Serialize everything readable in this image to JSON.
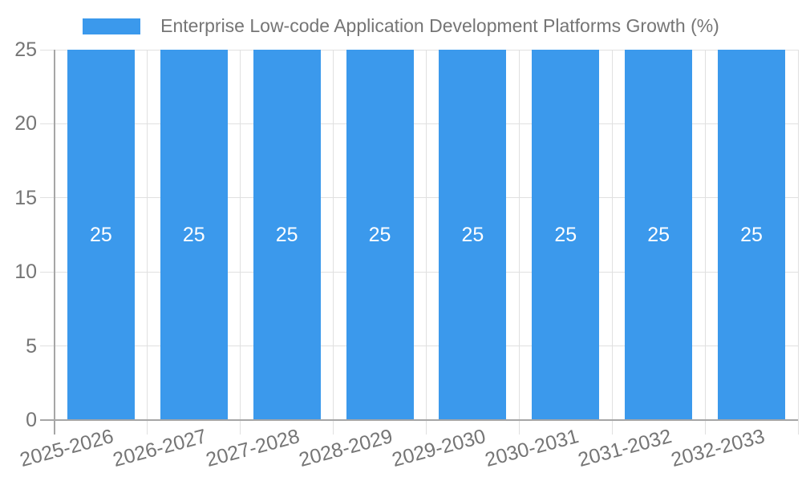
{
  "chart_data": {
    "type": "bar",
    "title": "Enterprise Low-code Application Development Platforms Growth (%)",
    "categories": [
      "2025-2026",
      "2026-2027",
      "2027-2028",
      "2028-2029",
      "2029-2030",
      "2030-2031",
      "2031-2032",
      "2032-2033"
    ],
    "values": [
      25,
      25,
      25,
      25,
      25,
      25,
      25,
      25
    ],
    "value_labels": [
      "25",
      "25",
      "25",
      "25",
      "25",
      "25",
      "25",
      "25"
    ],
    "xlabel": "",
    "ylabel": "",
    "ylim": [
      0,
      25
    ],
    "yticks": [
      0,
      5,
      10,
      15,
      20,
      25
    ],
    "grid": true,
    "legend_position": "top-center",
    "colors": {
      "bar": "#3B99EC",
      "value_label": "#FFFFFF",
      "tick_label": "#757575",
      "legend_text": "#757575",
      "gridline": "#E0E0E0",
      "axis": "#A6A6A6",
      "background": "#FFFFFF"
    }
  }
}
